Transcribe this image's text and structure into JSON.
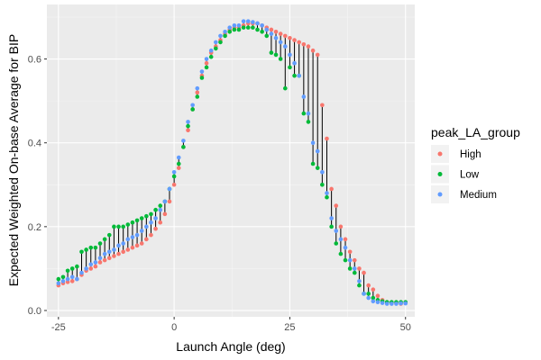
{
  "chart_data": {
    "type": "scatter",
    "xlabel": "Launch Angle (deg)",
    "ylabel": "Expected Weighted On-base Average for BIP",
    "xlim": [
      -27.5,
      52
    ],
    "ylim": [
      -0.015,
      0.73
    ],
    "x_ticks": [
      -25,
      0,
      25,
      50
    ],
    "y_ticks": [
      0.0,
      0.2,
      0.4,
      0.6
    ],
    "x_tick_labels": [
      "-25",
      "0",
      "25",
      "50"
    ],
    "y_tick_labels": [
      "0.0",
      "0.2",
      "0.4",
      "0.6"
    ],
    "grid": true,
    "legend": {
      "title": "peak_LA_group",
      "position": "right",
      "entries": [
        {
          "name": "High",
          "color": "#F8766D"
        },
        {
          "name": "Low",
          "color": "#00BA38"
        },
        {
          "name": "Medium",
          "color": "#619CFF"
        }
      ]
    },
    "segments_color": "#000000",
    "x": [
      -25,
      -24,
      -23,
      -22,
      -21,
      -20,
      -19,
      -18,
      -17,
      -16,
      -15,
      -14,
      -13,
      -12,
      -11,
      -10,
      -9,
      -8,
      -7,
      -6,
      -5,
      -4,
      -3,
      -2,
      -1,
      0,
      1,
      2,
      3,
      4,
      5,
      6,
      7,
      8,
      9,
      10,
      11,
      12,
      13,
      14,
      15,
      16,
      17,
      18,
      19,
      20,
      21,
      22,
      23,
      24,
      25,
      26,
      27,
      28,
      29,
      30,
      31,
      32,
      33,
      34,
      35,
      36,
      37,
      38,
      39,
      40,
      41,
      42,
      43,
      44,
      45,
      46,
      47,
      48,
      49,
      50
    ],
    "series": [
      {
        "name": "High",
        "values": [
          0.06,
          0.065,
          0.068,
          0.07,
          0.075,
          0.085,
          0.095,
          0.1,
          0.105,
          0.115,
          0.12,
          0.125,
          0.13,
          0.135,
          0.14,
          0.145,
          0.15,
          0.155,
          0.16,
          0.17,
          0.18,
          0.195,
          0.21,
          0.23,
          0.26,
          0.3,
          0.34,
          0.39,
          0.43,
          0.48,
          0.52,
          0.56,
          0.59,
          0.615,
          0.63,
          0.645,
          0.66,
          0.67,
          0.675,
          0.675,
          0.68,
          0.685,
          0.685,
          0.685,
          0.68,
          0.675,
          0.67,
          0.665,
          0.66,
          0.655,
          0.65,
          0.645,
          0.64,
          0.635,
          0.63,
          0.62,
          0.61,
          0.49,
          0.41,
          0.29,
          0.25,
          0.2,
          0.17,
          0.14,
          0.12,
          0.1,
          0.09,
          0.06,
          0.05,
          0.035,
          0.025,
          0.02,
          0.018,
          0.018,
          0.016,
          0.018
        ]
      },
      {
        "name": "Low",
        "values": [
          0.075,
          0.08,
          0.095,
          0.1,
          0.105,
          0.14,
          0.145,
          0.15,
          0.15,
          0.16,
          0.17,
          0.18,
          0.2,
          0.2,
          0.2,
          0.205,
          0.21,
          0.215,
          0.22,
          0.225,
          0.23,
          0.24,
          0.25,
          0.26,
          0.29,
          0.32,
          0.35,
          0.39,
          0.44,
          0.48,
          0.51,
          0.555,
          0.58,
          0.605,
          0.625,
          0.64,
          0.655,
          0.665,
          0.67,
          0.67,
          0.675,
          0.675,
          0.675,
          0.67,
          0.665,
          0.655,
          0.615,
          0.61,
          0.6,
          0.53,
          0.58,
          0.56,
          0.56,
          0.47,
          0.45,
          0.35,
          0.34,
          0.3,
          0.27,
          0.2,
          0.16,
          0.135,
          0.12,
          0.1,
          0.09,
          0.06,
          0.04,
          0.04,
          0.03,
          0.025,
          0.022,
          0.02,
          0.02,
          0.02,
          0.02,
          0.02
        ]
      },
      {
        "name": "Medium",
        "values": [
          0.065,
          0.07,
          0.075,
          0.08,
          0.075,
          0.09,
          0.1,
          0.11,
          0.115,
          0.125,
          0.135,
          0.14,
          0.145,
          0.155,
          0.16,
          0.17,
          0.175,
          0.18,
          0.19,
          0.2,
          0.21,
          0.22,
          0.24,
          0.26,
          0.29,
          0.33,
          0.365,
          0.405,
          0.45,
          0.49,
          0.53,
          0.57,
          0.6,
          0.62,
          0.64,
          0.655,
          0.665,
          0.675,
          0.68,
          0.68,
          0.69,
          0.69,
          0.688,
          0.685,
          0.68,
          0.67,
          0.66,
          0.65,
          0.64,
          0.63,
          0.61,
          0.59,
          0.56,
          0.51,
          0.47,
          0.4,
          0.38,
          0.33,
          0.28,
          0.22,
          0.19,
          0.17,
          0.15,
          0.12,
          0.1,
          0.07,
          0.04,
          0.03,
          0.022,
          0.02,
          0.018,
          0.016,
          0.016,
          0.016,
          0.017,
          0.017
        ]
      }
    ]
  }
}
